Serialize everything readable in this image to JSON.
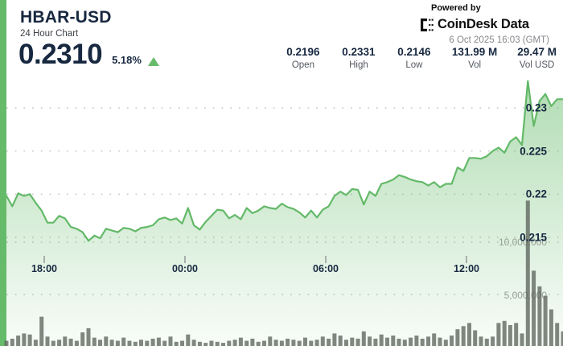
{
  "header": {
    "symbol": "HBAR-USD",
    "subtitle": "24 Hour Chart",
    "price": "0.2310",
    "change_pct": "5.18%",
    "change_direction": "up",
    "powered_by": "Powered by",
    "brand": "CoinDesk Data",
    "timestamp": "6 Oct 2025 16:03 (GMT)"
  },
  "stats": [
    {
      "value": "0.2196",
      "label": "Open"
    },
    {
      "value": "0.2331",
      "label": "High"
    },
    {
      "value": "0.2146",
      "label": "Low"
    },
    {
      "value": "131.99 M",
      "label": "Vol"
    },
    {
      "value": "29.47 M",
      "label": "Vol USD"
    }
  ],
  "colors": {
    "accent_green": "#66bb6a",
    "line_green": "#63b968",
    "area_green": "#68bc6c",
    "navy_text": "#172840",
    "volume_bar": "#5d655c",
    "grid_dot": "#c2c6c2",
    "vol_label_gray": "#97a097"
  },
  "chart_data": {
    "type": "area",
    "title": "HBAR-USD 24 Hour Chart",
    "x_ticks": [
      "18:00",
      "00:00",
      "06:00",
      "12:00"
    ],
    "price_axis_labels": [
      "0.23",
      "0.225",
      "0.22",
      "0.215"
    ],
    "price_gridlines": [
      0.23,
      0.225,
      0.22,
      0.215
    ],
    "volume_axis_labels": [
      "10,000,000",
      "5,000,000"
    ],
    "volume_gridlines_m": [
      10,
      5
    ],
    "open": 0.2196,
    "high": 0.2331,
    "low": 0.2146,
    "close": 0.231,
    "volume_total": "131.99 M",
    "volume_usd_total": "29.47 M",
    "legend": "none",
    "grid": "dotted",
    "prices": [
      0.2198,
      0.2186,
      0.2201,
      0.2198,
      0.22,
      0.219,
      0.2181,
      0.2167,
      0.2167,
      0.2175,
      0.2172,
      0.2162,
      0.216,
      0.2156,
      0.2146,
      0.2152,
      0.2149,
      0.216,
      0.2158,
      0.2156,
      0.2161,
      0.216,
      0.2157,
      0.2161,
      0.2162,
      0.2164,
      0.2171,
      0.2173,
      0.217,
      0.2172,
      0.2166,
      0.2184,
      0.2164,
      0.2159,
      0.2168,
      0.2175,
      0.2182,
      0.2181,
      0.2172,
      0.2176,
      0.2171,
      0.2184,
      0.2178,
      0.2181,
      0.2186,
      0.2184,
      0.2183,
      0.2189,
      0.2185,
      0.2183,
      0.2179,
      0.2173,
      0.2181,
      0.2173,
      0.2182,
      0.2186,
      0.2198,
      0.2203,
      0.2199,
      0.2206,
      0.2205,
      0.2188,
      0.2203,
      0.2198,
      0.2212,
      0.2214,
      0.2217,
      0.2222,
      0.222,
      0.2217,
      0.2215,
      0.2214,
      0.221,
      0.2214,
      0.2208,
      0.2212,
      0.2212,
      0.2231,
      0.2227,
      0.2242,
      0.2242,
      0.2241,
      0.2244,
      0.225,
      0.2254,
      0.2248,
      0.2261,
      0.2266,
      0.2257,
      0.2331,
      0.2279,
      0.2308,
      0.2316,
      0.2302,
      0.231,
      0.231
    ],
    "volumes_millions": [
      0.5,
      0.7,
      1.0,
      1.2,
      1.1,
      0.6,
      2.8,
      0.9,
      0.5,
      0.6,
      0.9,
      0.7,
      0.5,
      1.3,
      1.7,
      0.8,
      0.6,
      0.9,
      0.6,
      0.5,
      0.8,
      0.5,
      0.4,
      0.6,
      0.5,
      0.7,
      0.8,
      0.5,
      0.9,
      0.4,
      0.5,
      1.1,
      0.6,
      0.4,
      0.3,
      0.5,
      0.4,
      0.3,
      0.5,
      0.6,
      0.8,
      0.5,
      0.7,
      0.4,
      0.5,
      0.9,
      0.6,
      0.5,
      0.7,
      0.6,
      0.5,
      0.8,
      0.5,
      0.6,
      0.9,
      0.7,
      1.2,
      1.0,
      0.6,
      0.8,
      0.7,
      1.4,
      0.9,
      0.7,
      1.1,
      0.8,
      1.0,
      0.7,
      0.6,
      0.8,
      1.0,
      0.7,
      0.9,
      1.2,
      0.8,
      0.6,
      1.0,
      1.6,
      1.9,
      2.2,
      1.5,
      0.9,
      0.7,
      0.9,
      2.2,
      2.4,
      2.0,
      2.2,
      1.2,
      13.9,
      7.2,
      5.7,
      4.8,
      3.5,
      2.2,
      1.4
    ]
  }
}
